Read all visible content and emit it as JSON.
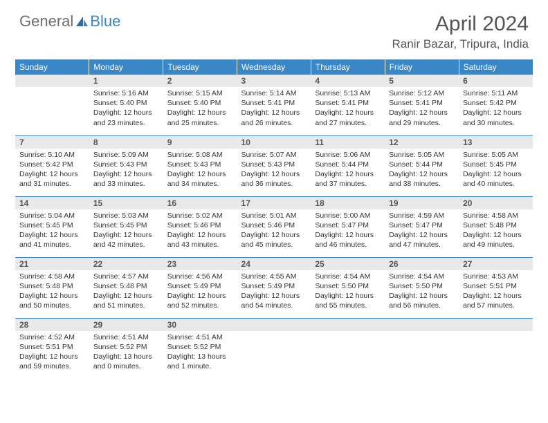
{
  "logo": {
    "text_gray": "General",
    "text_blue": "Blue"
  },
  "title": "April 2024",
  "location": "Ranir Bazar, Tripura, India",
  "colors": {
    "header_bg": "#3a87c8",
    "header_text": "#ffffff",
    "daynum_bg": "#e9e9e9",
    "row_border": "#3a87c8",
    "body_text": "#333333",
    "title_text": "#555555"
  },
  "weekdays": [
    "Sunday",
    "Monday",
    "Tuesday",
    "Wednesday",
    "Thursday",
    "Friday",
    "Saturday"
  ],
  "weeks": [
    [
      null,
      {
        "n": 1,
        "sunrise": "5:16 AM",
        "sunset": "5:40 PM",
        "daylight": "12 hours and 23 minutes."
      },
      {
        "n": 2,
        "sunrise": "5:15 AM",
        "sunset": "5:40 PM",
        "daylight": "12 hours and 25 minutes."
      },
      {
        "n": 3,
        "sunrise": "5:14 AM",
        "sunset": "5:41 PM",
        "daylight": "12 hours and 26 minutes."
      },
      {
        "n": 4,
        "sunrise": "5:13 AM",
        "sunset": "5:41 PM",
        "daylight": "12 hours and 27 minutes."
      },
      {
        "n": 5,
        "sunrise": "5:12 AM",
        "sunset": "5:41 PM",
        "daylight": "12 hours and 29 minutes."
      },
      {
        "n": 6,
        "sunrise": "5:11 AM",
        "sunset": "5:42 PM",
        "daylight": "12 hours and 30 minutes."
      }
    ],
    [
      {
        "n": 7,
        "sunrise": "5:10 AM",
        "sunset": "5:42 PM",
        "daylight": "12 hours and 31 minutes."
      },
      {
        "n": 8,
        "sunrise": "5:09 AM",
        "sunset": "5:43 PM",
        "daylight": "12 hours and 33 minutes."
      },
      {
        "n": 9,
        "sunrise": "5:08 AM",
        "sunset": "5:43 PM",
        "daylight": "12 hours and 34 minutes."
      },
      {
        "n": 10,
        "sunrise": "5:07 AM",
        "sunset": "5:43 PM",
        "daylight": "12 hours and 36 minutes."
      },
      {
        "n": 11,
        "sunrise": "5:06 AM",
        "sunset": "5:44 PM",
        "daylight": "12 hours and 37 minutes."
      },
      {
        "n": 12,
        "sunrise": "5:05 AM",
        "sunset": "5:44 PM",
        "daylight": "12 hours and 38 minutes."
      },
      {
        "n": 13,
        "sunrise": "5:05 AM",
        "sunset": "5:45 PM",
        "daylight": "12 hours and 40 minutes."
      }
    ],
    [
      {
        "n": 14,
        "sunrise": "5:04 AM",
        "sunset": "5:45 PM",
        "daylight": "12 hours and 41 minutes."
      },
      {
        "n": 15,
        "sunrise": "5:03 AM",
        "sunset": "5:45 PM",
        "daylight": "12 hours and 42 minutes."
      },
      {
        "n": 16,
        "sunrise": "5:02 AM",
        "sunset": "5:46 PM",
        "daylight": "12 hours and 43 minutes."
      },
      {
        "n": 17,
        "sunrise": "5:01 AM",
        "sunset": "5:46 PM",
        "daylight": "12 hours and 45 minutes."
      },
      {
        "n": 18,
        "sunrise": "5:00 AM",
        "sunset": "5:47 PM",
        "daylight": "12 hours and 46 minutes."
      },
      {
        "n": 19,
        "sunrise": "4:59 AM",
        "sunset": "5:47 PM",
        "daylight": "12 hours and 47 minutes."
      },
      {
        "n": 20,
        "sunrise": "4:58 AM",
        "sunset": "5:48 PM",
        "daylight": "12 hours and 49 minutes."
      }
    ],
    [
      {
        "n": 21,
        "sunrise": "4:58 AM",
        "sunset": "5:48 PM",
        "daylight": "12 hours and 50 minutes."
      },
      {
        "n": 22,
        "sunrise": "4:57 AM",
        "sunset": "5:48 PM",
        "daylight": "12 hours and 51 minutes."
      },
      {
        "n": 23,
        "sunrise": "4:56 AM",
        "sunset": "5:49 PM",
        "daylight": "12 hours and 52 minutes."
      },
      {
        "n": 24,
        "sunrise": "4:55 AM",
        "sunset": "5:49 PM",
        "daylight": "12 hours and 54 minutes."
      },
      {
        "n": 25,
        "sunrise": "4:54 AM",
        "sunset": "5:50 PM",
        "daylight": "12 hours and 55 minutes."
      },
      {
        "n": 26,
        "sunrise": "4:54 AM",
        "sunset": "5:50 PM",
        "daylight": "12 hours and 56 minutes."
      },
      {
        "n": 27,
        "sunrise": "4:53 AM",
        "sunset": "5:51 PM",
        "daylight": "12 hours and 57 minutes."
      }
    ],
    [
      {
        "n": 28,
        "sunrise": "4:52 AM",
        "sunset": "5:51 PM",
        "daylight": "12 hours and 59 minutes."
      },
      {
        "n": 29,
        "sunrise": "4:51 AM",
        "sunset": "5:52 PM",
        "daylight": "13 hours and 0 minutes."
      },
      {
        "n": 30,
        "sunrise": "4:51 AM",
        "sunset": "5:52 PM",
        "daylight": "13 hours and 1 minute."
      },
      null,
      null,
      null,
      null
    ]
  ],
  "labels": {
    "sunrise": "Sunrise:",
    "sunset": "Sunset:",
    "daylight": "Daylight:"
  }
}
